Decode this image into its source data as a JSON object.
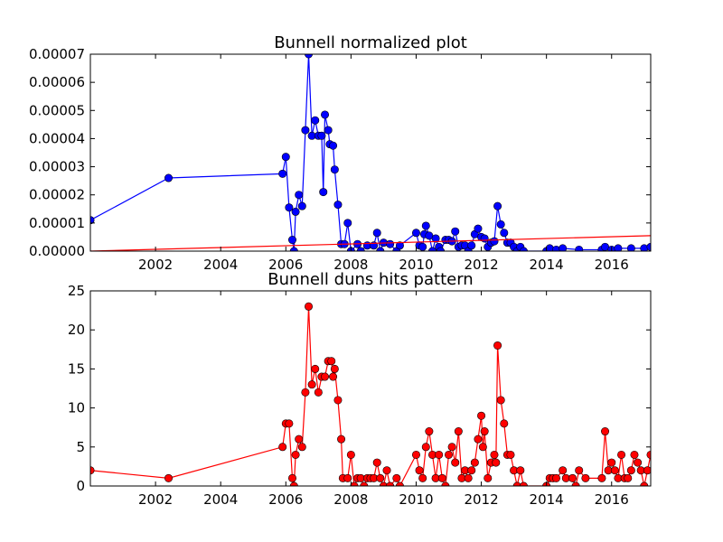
{
  "chart_data": [
    {
      "type": "line",
      "title": "Bunnell normalized plot",
      "xlabel": "",
      "ylabel": "",
      "xlim": [
        2000.0,
        2017.2
      ],
      "ylim": [
        0,
        7e-05
      ],
      "grid": false,
      "x_ticks": [
        2002,
        2004,
        2006,
        2008,
        2010,
        2012,
        2014,
        2016
      ],
      "x_tick_labels": [
        "2002",
        "2004",
        "2006",
        "2008",
        "2010",
        "2012",
        "2014",
        "2016"
      ],
      "y_ticks": [
        0,
        1e-05,
        2e-05,
        3e-05,
        4e-05,
        5e-05,
        6e-05,
        7e-05
      ],
      "y_tick_labels": [
        "0.00000",
        "0.00001",
        "0.00002",
        "0.00003",
        "0.00004",
        "0.00005",
        "0.00006",
        "0.00007"
      ],
      "series": [
        {
          "color": "#0000ff",
          "marker": "circle",
          "points": [
            [
              2000.0,
              1.1e-05
            ],
            [
              2002.4,
              2.6e-05
            ],
            [
              2005.9,
              2.75e-05
            ],
            [
              2006.0,
              3.35e-05
            ],
            [
              2006.1,
              1.55e-05
            ],
            [
              2006.2,
              4e-06
            ],
            [
              2006.25,
              0.0
            ],
            [
              2006.3,
              1.4e-05
            ],
            [
              2006.4,
              2e-05
            ],
            [
              2006.5,
              1.6e-05
            ],
            [
              2006.6,
              4.3e-05
            ],
            [
              2006.7,
              7e-05
            ],
            [
              2006.8,
              4.1e-05
            ],
            [
              2006.9,
              4.65e-05
            ],
            [
              2007.0,
              4.1e-05
            ],
            [
              2007.1,
              4.1e-05
            ],
            [
              2007.15,
              2.1e-05
            ],
            [
              2007.2,
              4.85e-05
            ],
            [
              2007.3,
              4.3e-05
            ],
            [
              2007.35,
              3.8e-05
            ],
            [
              2007.45,
              3.75e-05
            ],
            [
              2007.5,
              2.9e-05
            ],
            [
              2007.6,
              1.65e-05
            ],
            [
              2007.7,
              2.5e-06
            ],
            [
              2007.8,
              2.5e-06
            ],
            [
              2007.9,
              1e-05
            ],
            [
              2008.0,
              0.0
            ],
            [
              2008.2,
              2.5e-06
            ],
            [
              2008.3,
              0.0
            ],
            [
              2008.5,
              2e-06
            ],
            [
              2008.7,
              2e-06
            ],
            [
              2008.8,
              6.5e-06
            ],
            [
              2008.9,
              0.0
            ],
            [
              2009.0,
              3e-06
            ],
            [
              2009.2,
              2.5e-06
            ],
            [
              2009.4,
              0.0
            ],
            [
              2009.5,
              2e-06
            ],
            [
              2010.0,
              6.5e-06
            ],
            [
              2010.1,
              2e-06
            ],
            [
              2010.2,
              1.5e-06
            ],
            [
              2010.25,
              6e-06
            ],
            [
              2010.3,
              9e-06
            ],
            [
              2010.4,
              5.5e-06
            ],
            [
              2010.5,
              0.0
            ],
            [
              2010.6,
              4.5e-06
            ],
            [
              2010.7,
              1.5e-06
            ],
            [
              2010.75,
              0.0
            ],
            [
              2010.9,
              4e-06
            ],
            [
              2011.0,
              4e-06
            ],
            [
              2011.1,
              3.5e-06
            ],
            [
              2011.2,
              7e-06
            ],
            [
              2011.3,
              1.5e-06
            ],
            [
              2011.4,
              2e-06
            ],
            [
              2011.5,
              2e-06
            ],
            [
              2011.6,
              0.0
            ],
            [
              2011.7,
              2e-06
            ],
            [
              2011.8,
              6e-06
            ],
            [
              2011.9,
              8e-06
            ],
            [
              2012.0,
              5e-06
            ],
            [
              2012.1,
              4.5e-06
            ],
            [
              2012.2,
              1.5e-06
            ],
            [
              2012.3,
              3e-06
            ],
            [
              2012.4,
              3.5e-06
            ],
            [
              2012.5,
              1.6e-05
            ],
            [
              2012.6,
              9.5e-06
            ],
            [
              2012.7,
              6.5e-06
            ],
            [
              2012.8,
              3e-06
            ],
            [
              2012.9,
              3e-06
            ],
            [
              2013.0,
              1.5e-06
            ],
            [
              2013.1,
              0.0
            ],
            [
              2013.2,
              1.5e-06
            ],
            [
              2013.3,
              0.0
            ],
            [
              2014.0,
              0.0
            ],
            [
              2014.1,
              1e-06
            ],
            [
              2014.3,
              5e-07
            ],
            [
              2014.5,
              1e-06
            ],
            [
              2015.0,
              5e-07
            ],
            [
              2015.7,
              5e-07
            ],
            [
              2015.8,
              1.5e-06
            ],
            [
              2016.0,
              5e-07
            ],
            [
              2016.2,
              1e-06
            ],
            [
              2016.6,
              1e-06
            ],
            [
              2017.0,
              1e-06
            ],
            [
              2017.2,
              1.5e-06
            ]
          ]
        },
        {
          "color": "#ff0000",
          "marker": "none",
          "points": [
            [
              2000.0,
              0.0
            ],
            [
              2017.2,
              5.5e-06
            ]
          ]
        }
      ]
    },
    {
      "type": "line",
      "title": "Bunnell duns hits pattern",
      "xlabel": "",
      "ylabel": "",
      "xlim": [
        2000.0,
        2017.2
      ],
      "ylim": [
        0,
        25
      ],
      "grid": false,
      "x_ticks": [
        2002,
        2004,
        2006,
        2008,
        2010,
        2012,
        2014,
        2016
      ],
      "x_tick_labels": [
        "2002",
        "2004",
        "2006",
        "2008",
        "2010",
        "2012",
        "2014",
        "2016"
      ],
      "y_ticks": [
        0,
        5,
        10,
        15,
        20,
        25
      ],
      "y_tick_labels": [
        "0",
        "5",
        "10",
        "15",
        "20",
        "25"
      ],
      "series": [
        {
          "color": "#ff0000",
          "marker": "circle",
          "points": [
            [
              2000.0,
              2
            ],
            [
              2002.4,
              1
            ],
            [
              2005.9,
              5
            ],
            [
              2006.0,
              8
            ],
            [
              2006.1,
              8
            ],
            [
              2006.2,
              1
            ],
            [
              2006.25,
              0
            ],
            [
              2006.3,
              4
            ],
            [
              2006.4,
              6
            ],
            [
              2006.5,
              5
            ],
            [
              2006.6,
              12
            ],
            [
              2006.7,
              23
            ],
            [
              2006.8,
              13
            ],
            [
              2006.9,
              15
            ],
            [
              2007.0,
              12
            ],
            [
              2007.1,
              14
            ],
            [
              2007.2,
              14
            ],
            [
              2007.3,
              16
            ],
            [
              2007.4,
              16
            ],
            [
              2007.45,
              14
            ],
            [
              2007.5,
              15
            ],
            [
              2007.6,
              11
            ],
            [
              2007.7,
              6
            ],
            [
              2007.75,
              1
            ],
            [
              2007.9,
              1
            ],
            [
              2008.0,
              4
            ],
            [
              2008.1,
              0
            ],
            [
              2008.2,
              1
            ],
            [
              2008.3,
              1
            ],
            [
              2008.4,
              0
            ],
            [
              2008.5,
              1
            ],
            [
              2008.6,
              1
            ],
            [
              2008.7,
              1
            ],
            [
              2008.8,
              3
            ],
            [
              2008.9,
              1
            ],
            [
              2009.0,
              0
            ],
            [
              2009.1,
              2
            ],
            [
              2009.2,
              0
            ],
            [
              2009.4,
              1
            ],
            [
              2009.5,
              0
            ],
            [
              2010.0,
              4
            ],
            [
              2010.1,
              2
            ],
            [
              2010.2,
              1
            ],
            [
              2010.3,
              5
            ],
            [
              2010.4,
              7
            ],
            [
              2010.5,
              4
            ],
            [
              2010.6,
              1
            ],
            [
              2010.7,
              4
            ],
            [
              2010.8,
              1
            ],
            [
              2010.9,
              0
            ],
            [
              2011.0,
              4
            ],
            [
              2011.1,
              5
            ],
            [
              2011.2,
              3
            ],
            [
              2011.3,
              7
            ],
            [
              2011.4,
              1
            ],
            [
              2011.5,
              2
            ],
            [
              2011.6,
              1
            ],
            [
              2011.7,
              2
            ],
            [
              2011.8,
              3
            ],
            [
              2011.9,
              6
            ],
            [
              2012.0,
              9
            ],
            [
              2012.05,
              5
            ],
            [
              2012.1,
              7
            ],
            [
              2012.2,
              1
            ],
            [
              2012.3,
              3
            ],
            [
              2012.4,
              4
            ],
            [
              2012.45,
              3
            ],
            [
              2012.5,
              18
            ],
            [
              2012.6,
              11
            ],
            [
              2012.7,
              8
            ],
            [
              2012.8,
              4
            ],
            [
              2012.9,
              4
            ],
            [
              2013.0,
              2
            ],
            [
              2013.1,
              0
            ],
            [
              2013.2,
              2
            ],
            [
              2013.3,
              0
            ],
            [
              2014.0,
              0
            ],
            [
              2014.1,
              1
            ],
            [
              2014.2,
              1
            ],
            [
              2014.3,
              1
            ],
            [
              2014.5,
              2
            ],
            [
              2014.6,
              1
            ],
            [
              2014.8,
              1
            ],
            [
              2014.9,
              0
            ],
            [
              2015.0,
              2
            ],
            [
              2015.2,
              1
            ],
            [
              2015.7,
              1
            ],
            [
              2015.8,
              7
            ],
            [
              2015.9,
              2
            ],
            [
              2016.0,
              3
            ],
            [
              2016.1,
              2
            ],
            [
              2016.2,
              1
            ],
            [
              2016.3,
              4
            ],
            [
              2016.4,
              1
            ],
            [
              2016.5,
              1
            ],
            [
              2016.6,
              2
            ],
            [
              2016.7,
              4
            ],
            [
              2016.8,
              3
            ],
            [
              2016.9,
              2
            ],
            [
              2017.0,
              0
            ],
            [
              2017.1,
              2
            ],
            [
              2017.2,
              4
            ]
          ]
        }
      ]
    }
  ]
}
